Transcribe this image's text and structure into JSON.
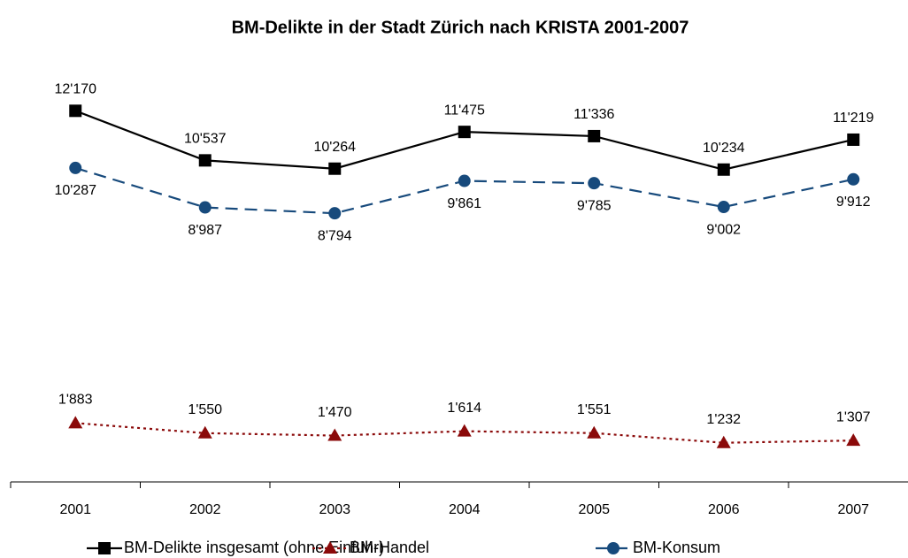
{
  "chart_data": {
    "type": "line",
    "title": "BM-Delikte in der Stadt Zürich nach KRISTA 2001-2007",
    "categories": [
      "2001",
      "2002",
      "2003",
      "2004",
      "2005",
      "2006",
      "2007"
    ],
    "ylim": [
      0,
      14000
    ],
    "yticks": [],
    "grid": false,
    "legend": "bottom",
    "series": [
      {
        "name": "BM-Delikte insgesamt (ohne Einfuhr)",
        "color": "#000000",
        "dash": "solid",
        "marker": "square",
        "values": [
          12170,
          10537,
          10264,
          11475,
          11336,
          10234,
          11219
        ],
        "value_labels": [
          "12'170",
          "10'537",
          "10'264",
          "11'475",
          "11'336",
          "10'234",
          "11'219"
        ]
      },
      {
        "name": "BM-Handel",
        "color": "#8b0a0a",
        "dash": "dotted",
        "marker": "triangle",
        "values": [
          1883,
          1550,
          1470,
          1614,
          1551,
          1232,
          1307
        ],
        "value_labels": [
          "1'883",
          "1'550",
          "1'470",
          "1'614",
          "1'551",
          "1'232",
          "1'307"
        ]
      },
      {
        "name": "BM-Konsum",
        "color": "#174a7c",
        "dash": "dashed",
        "marker": "circle",
        "values": [
          10287,
          8987,
          8794,
          9861,
          9785,
          9002,
          9912
        ],
        "value_labels": [
          "10'287",
          "8'987",
          "8'794",
          "9'861",
          "9'785",
          "9'002",
          "9'912"
        ]
      }
    ]
  }
}
